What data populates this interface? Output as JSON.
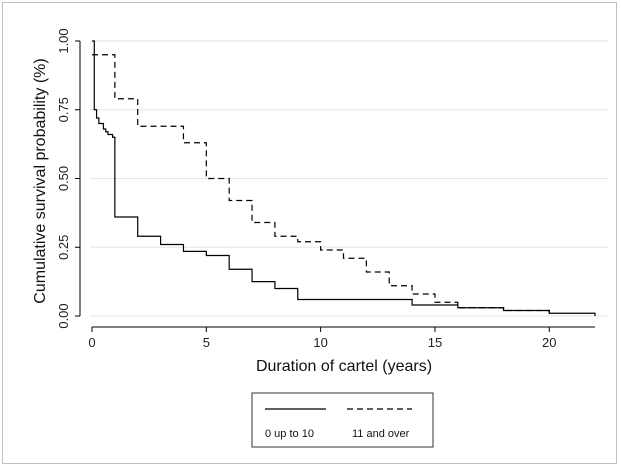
{
  "chart_data": {
    "type": "line",
    "xlabel": "Duration of cartel (years)",
    "ylabel": "Cumulative survival probability (%)",
    "xlim": [
      0,
      22.5
    ],
    "ylim": [
      0,
      1
    ],
    "x_ticks": [
      0,
      5,
      10,
      15,
      20
    ],
    "x_tick_labels": [
      "0",
      "5",
      "10",
      "15",
      "20"
    ],
    "y_ticks": [
      0,
      0.25,
      0.5,
      0.75,
      1
    ],
    "y_tick_labels": [
      "0.00",
      "0.25",
      "0.50",
      "0.75",
      "1.00"
    ],
    "grid": true,
    "legend_position": "bottom",
    "step": true,
    "series": [
      {
        "name": "0 up to 10",
        "style": "solid",
        "color": "#000000",
        "points": [
          [
            0,
            1.0
          ],
          [
            0.1,
            0.75
          ],
          [
            0.2,
            0.72
          ],
          [
            0.3,
            0.7
          ],
          [
            0.5,
            0.68
          ],
          [
            0.6,
            0.67
          ],
          [
            0.7,
            0.66
          ],
          [
            0.9,
            0.65
          ],
          [
            1,
            0.36
          ],
          [
            2,
            0.29
          ],
          [
            3,
            0.26
          ],
          [
            4,
            0.235
          ],
          [
            5,
            0.22
          ],
          [
            6,
            0.17
          ],
          [
            7,
            0.125
          ],
          [
            8,
            0.1
          ],
          [
            9,
            0.06
          ],
          [
            14,
            0.04
          ],
          [
            16,
            0.03
          ],
          [
            18,
            0.02
          ],
          [
            20,
            0.01
          ],
          [
            22,
            0.0
          ]
        ]
      },
      {
        "name": "11 and over",
        "style": "dashed",
        "color": "#000000",
        "points": [
          [
            0,
            0.95
          ],
          [
            1,
            0.79
          ],
          [
            2,
            0.69
          ],
          [
            4,
            0.63
          ],
          [
            5,
            0.5
          ],
          [
            6,
            0.42
          ],
          [
            7,
            0.34
          ],
          [
            8,
            0.29
          ],
          [
            9,
            0.27
          ],
          [
            10,
            0.24
          ],
          [
            11,
            0.21
          ],
          [
            12,
            0.16
          ],
          [
            13,
            0.11
          ],
          [
            14,
            0.08
          ],
          [
            15,
            0.05
          ],
          [
            16,
            0.03
          ],
          [
            18,
            0.02
          ],
          [
            20,
            0.0
          ]
        ]
      }
    ]
  }
}
